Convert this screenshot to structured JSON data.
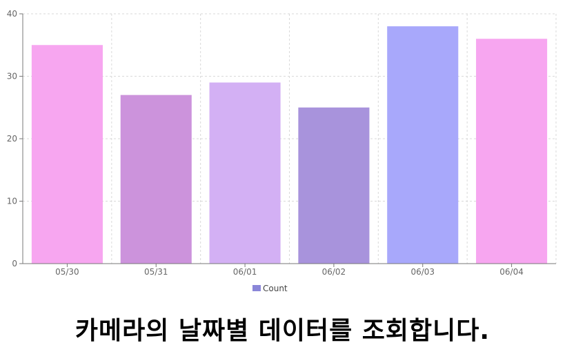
{
  "chart_data": {
    "type": "bar",
    "categories": [
      "05/30",
      "05/31",
      "06/01",
      "06/02",
      "06/03",
      "06/04"
    ],
    "series": [
      {
        "name": "Count",
        "values": [
          35,
          27,
          29,
          25,
          38,
          36
        ]
      }
    ],
    "bar_colors": [
      "#f7a6f0",
      "#cc93dc",
      "#d3b0f4",
      "#a893dc",
      "#a8a8fb",
      "#f7a6f0"
    ],
    "legend_color": "#8a86d8",
    "ylim": [
      0,
      40
    ],
    "yticks": [
      0,
      10,
      20,
      30,
      40
    ],
    "grid": true,
    "legend": "bottom-center"
  },
  "caption": "카메라의 날짜별 데이터를 조회합니다."
}
